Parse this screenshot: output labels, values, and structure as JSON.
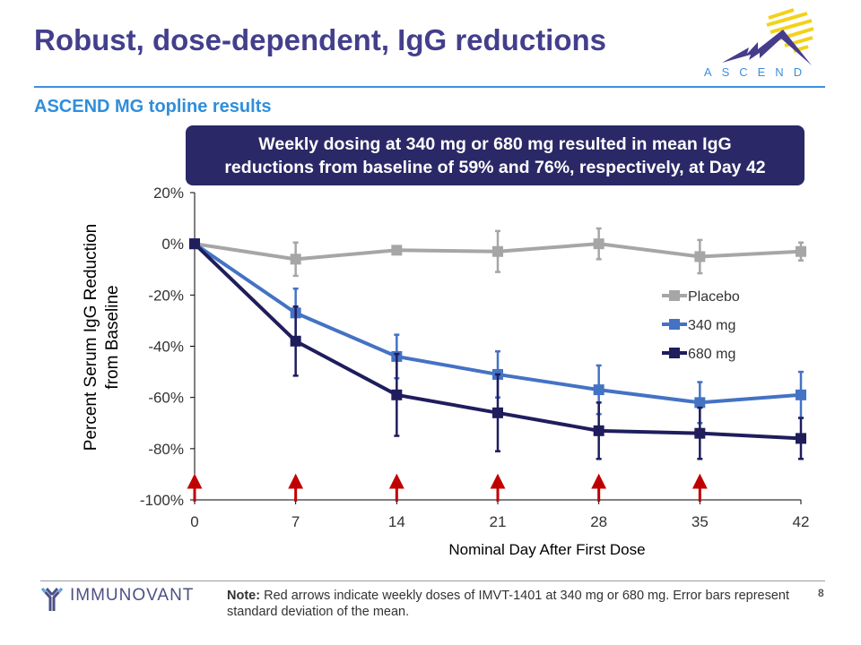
{
  "header": {
    "title": "Robust, dose-dependent, IgG reductions",
    "subtitle": "ASCEND MG topline results",
    "logo_text": "ASCEND"
  },
  "callout": {
    "line1": "Weekly dosing at 340 mg or 680 mg resulted in mean IgG",
    "line2": "reductions from baseline of 59% and 76%, respectively, at Day 42"
  },
  "footer": {
    "note_label": "Note:",
    "note_text": " Red arrows indicate weekly doses of IMVT-1401 at 340 mg or 680 mg.  Error bars represent standard deviation of the mean.",
    "page": "8",
    "company": "IMMUNOVANT"
  },
  "chart_data": {
    "type": "line",
    "xlabel": "Nominal Day After First Dose",
    "ylabel": [
      "Percent Serum IgG Reduction",
      "from Baseline"
    ],
    "x": [
      0,
      7,
      14,
      21,
      28,
      35,
      42
    ],
    "xticks": [
      "0",
      "7",
      "14",
      "21",
      "28",
      "35",
      "42"
    ],
    "yticks": [
      "20%",
      "0%",
      "-20%",
      "-40%",
      "-60%",
      "-80%",
      "-100%"
    ],
    "ylim": [
      -100,
      20
    ],
    "xlim": [
      0,
      42
    ],
    "legend_position": "right",
    "dose_days": [
      0,
      7,
      14,
      21,
      28,
      35
    ],
    "dose_arrow_color": "#c00000",
    "series": [
      {
        "name": "Placebo",
        "color": "#a6a6a6",
        "values": [
          0,
          -6,
          -2.5,
          -3,
          0,
          -5,
          -3
        ],
        "sd": [
          0,
          6.5,
          1.5,
          8,
          6,
          6.5,
          3.5
        ]
      },
      {
        "name": "340 mg",
        "color": "#4472c4",
        "values": [
          0,
          -27,
          -44,
          -51,
          -57,
          -62,
          -59
        ],
        "sd": [
          0,
          9.5,
          8.5,
          9,
          9.5,
          8,
          9
        ]
      },
      {
        "name": "680 mg",
        "color": "#1f1d5c",
        "values": [
          0,
          -38,
          -59,
          -66,
          -73,
          -74,
          -76
        ],
        "sd": [
          0,
          13.5,
          16,
          15,
          11,
          10,
          8
        ]
      }
    ]
  }
}
